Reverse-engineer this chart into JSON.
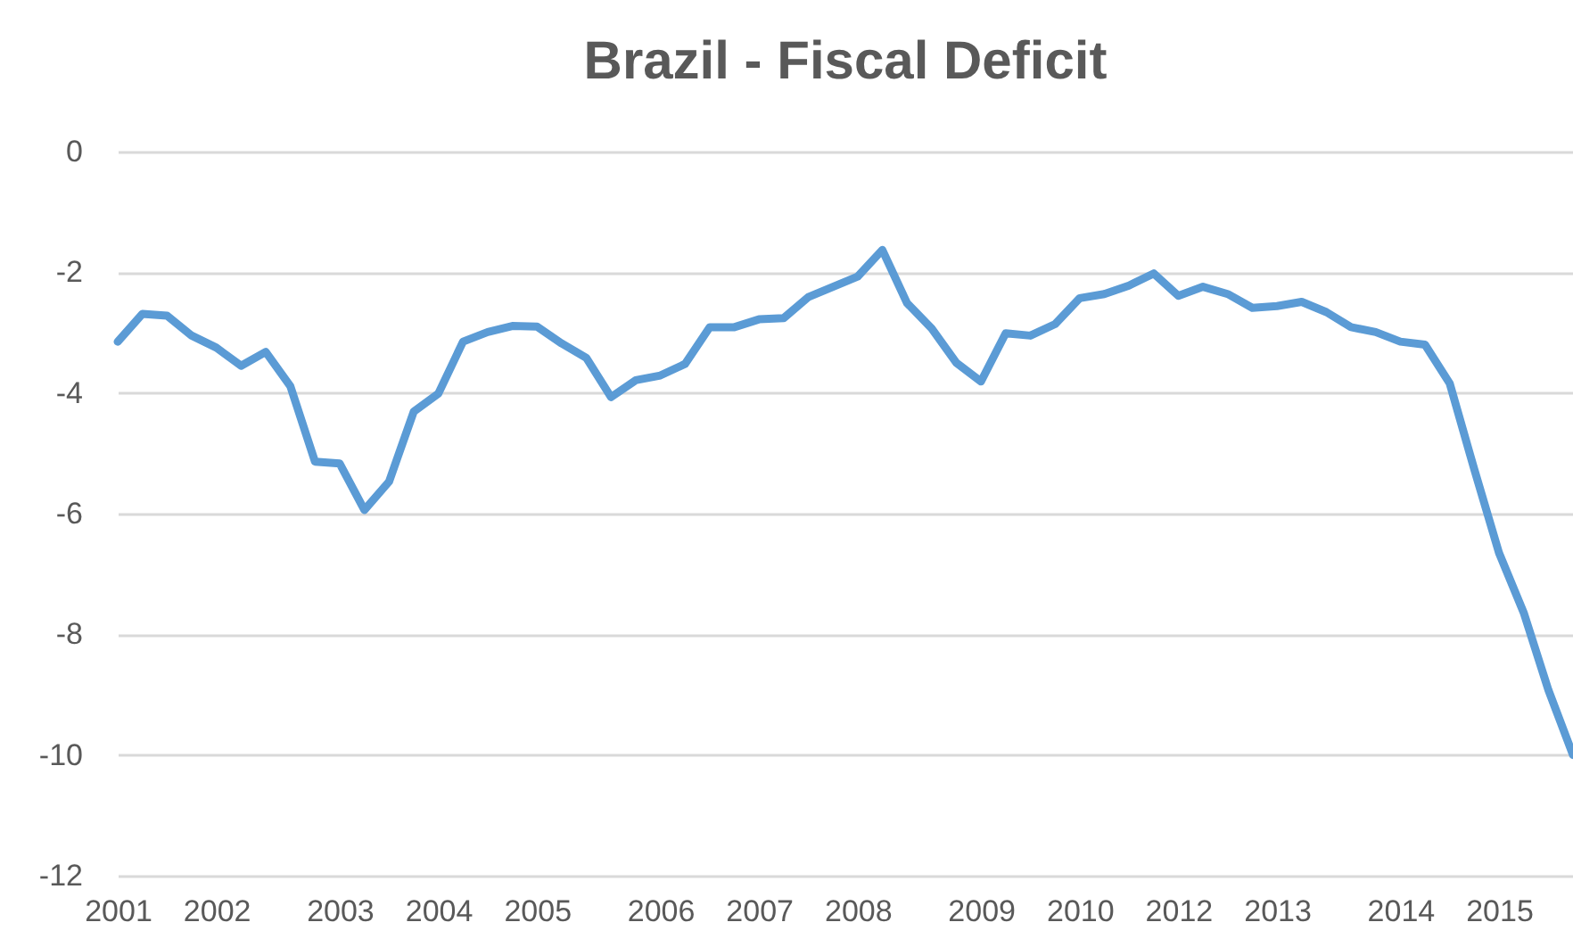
{
  "chart_data": {
    "type": "line",
    "title": "Brazil - Fiscal Deficit",
    "categories": [
      "2001",
      null,
      null,
      null,
      "2002",
      null,
      null,
      null,
      null,
      "2003",
      null,
      null,
      null,
      "2004",
      null,
      null,
      null,
      "2005",
      null,
      null,
      null,
      null,
      "2006",
      null,
      null,
      null,
      "2007",
      null,
      null,
      null,
      "2008",
      null,
      null,
      null,
      null,
      "2009",
      null,
      null,
      null,
      "2010",
      null,
      null,
      null,
      "2012",
      null,
      null,
      null,
      "2013",
      null,
      null,
      null,
      null,
      "2014",
      null,
      null,
      null,
      "2015",
      null,
      null,
      null
    ],
    "series": [
      {
        "color": "#5b9bd5",
        "values": [
          -3.15,
          -2.69,
          -2.72,
          -3.05,
          -3.25,
          -3.55,
          -3.32,
          -3.89,
          -5.14,
          -5.17,
          -5.94,
          -5.47,
          -4.31,
          -4.01,
          -3.15,
          -2.99,
          -2.89,
          -2.9,
          -3.18,
          -3.42,
          -4.07,
          -3.79,
          -3.71,
          -3.52,
          -2.91,
          -2.91,
          -2.78,
          -2.76,
          -2.41,
          -2.24,
          -2.07,
          -1.63,
          -2.51,
          -2.93,
          -3.5,
          -3.81,
          -3.01,
          -3.05,
          -2.86,
          -2.43,
          -2.36,
          -2.22,
          -2.02,
          -2.39,
          -2.24,
          -2.36,
          -2.59,
          -2.56,
          -2.49,
          -2.66,
          -2.91,
          -2.99,
          -3.15,
          -3.2,
          -3.84,
          -5.27,
          -6.65,
          -7.64,
          -8.92,
          -10.0
        ]
      }
    ],
    "ylim": [
      -12,
      0
    ],
    "yticks": [
      -12,
      -10,
      -8,
      -6,
      -4,
      -2,
      0
    ],
    "grid": "y",
    "legend": false,
    "marker": "none",
    "line_style": "solid"
  }
}
